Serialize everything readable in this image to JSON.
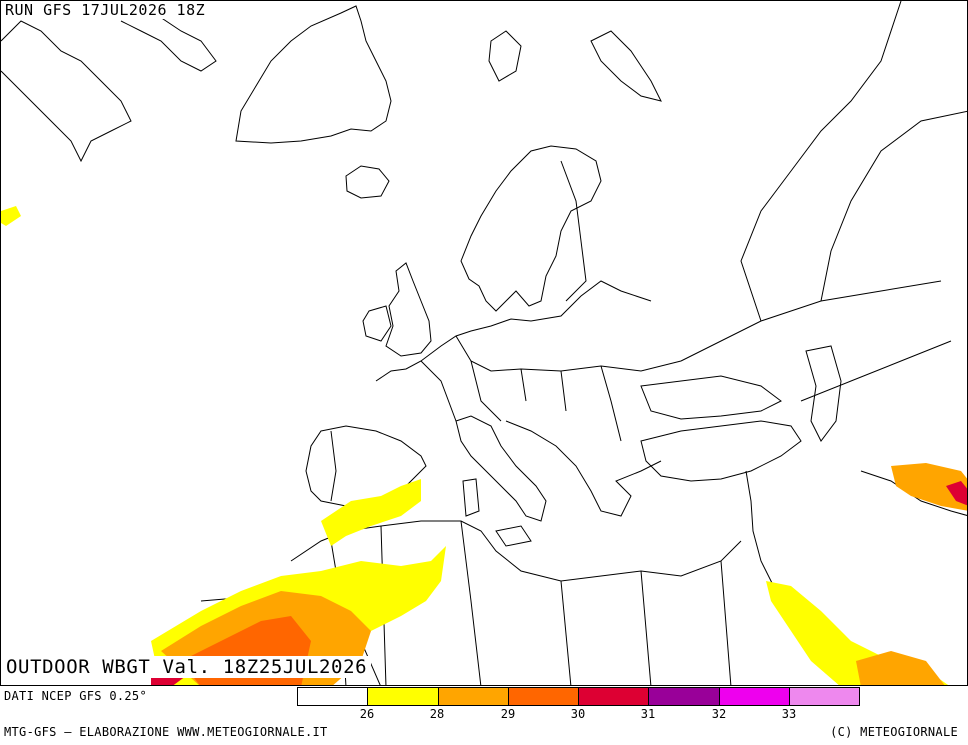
{
  "header": {
    "run_title": "RUN GFS 17JUL2026 18Z"
  },
  "map": {
    "variable_title": "OUTDOOR WBGT Val. 18Z25JUL2026",
    "land_color": "#ffffff",
    "border_color": "#000000"
  },
  "legend": {
    "boxes": [
      {
        "color": "#ffffff"
      },
      {
        "color": "#ffff00"
      },
      {
        "color": "#ffa500"
      },
      {
        "color": "#ff6600"
      },
      {
        "color": "#dd0033"
      },
      {
        "color": "#990099"
      },
      {
        "color": "#ee00ee"
      },
      {
        "color": "#ee88ee"
      }
    ],
    "thresholds": [
      "26",
      "28",
      "29",
      "30",
      "31",
      "32",
      "33"
    ]
  },
  "footer": {
    "data_source": "DATI NCEP GFS 0.25°",
    "elaboration": "MTG-GFS — ELABORAZIONE WWW.METEOGIORNALE.IT",
    "copyright": "(C) METEOGIORNALE"
  }
}
